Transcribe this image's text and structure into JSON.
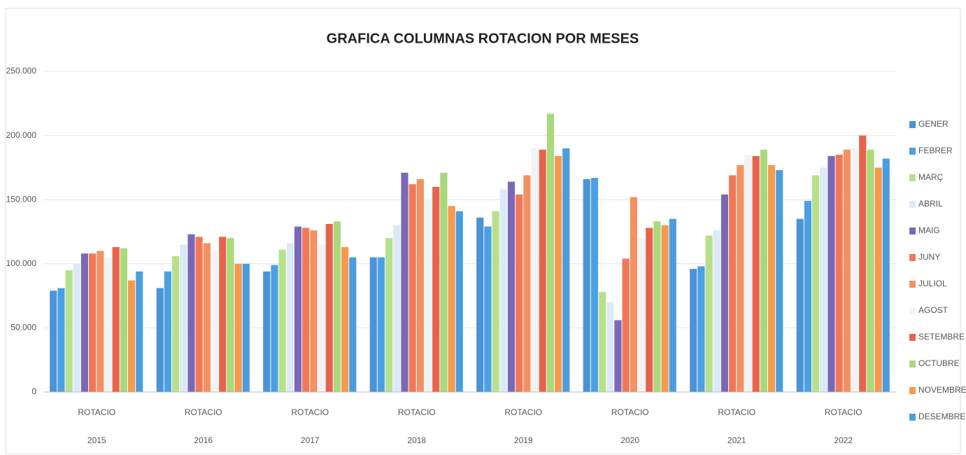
{
  "chart_data": {
    "type": "bar",
    "title": "GRAFICA COLUMNAS ROTACION POR MESES",
    "categories": [
      [
        "ROTACIO",
        "2015"
      ],
      [
        "ROTACIO",
        "2016"
      ],
      [
        "ROTACIO",
        "2017"
      ],
      [
        "ROTACIO",
        "2018"
      ],
      [
        "ROTACIO",
        "2019"
      ],
      [
        "ROTACIO",
        "2020"
      ],
      [
        "ROTACIO",
        "2021"
      ],
      [
        "ROTACIO",
        "2022"
      ]
    ],
    "series": [
      {
        "name": "GENER",
        "color": "#4b93d8",
        "values": [
          79000,
          81000,
          94000,
          105000,
          136000,
          166000,
          96000,
          135000
        ]
      },
      {
        "name": "FEBRER",
        "color": "#4aa0e2",
        "values": [
          81000,
          94000,
          99000,
          105000,
          129000,
          167000,
          98000,
          149000
        ]
      },
      {
        "name": "MARÇ",
        "color": "#b8e08c",
        "values": [
          95000,
          106000,
          111000,
          120000,
          141000,
          78000,
          122000,
          169000
        ]
      },
      {
        "name": "ABRIL",
        "color": "#dce9f6",
        "values": [
          100000,
          115000,
          116000,
          130000,
          158000,
          70000,
          126000,
          175000
        ]
      },
      {
        "name": "MAIG",
        "color": "#7a68b6",
        "values": [
          108000,
          123000,
          129000,
          171000,
          164000,
          56000,
          154000,
          184000
        ]
      },
      {
        "name": "JUNY",
        "color": "#f07858",
        "values": [
          108000,
          121000,
          128000,
          162000,
          154000,
          104000,
          169000,
          185000
        ]
      },
      {
        "name": "JULIOL",
        "color": "#f39162",
        "values": [
          110000,
          116000,
          126000,
          166000,
          169000,
          152000,
          177000,
          189000
        ]
      },
      {
        "name": "AGOST",
        "color": "#f3f3f3",
        "values": [
          105000,
          110000,
          115000,
          150000,
          190000,
          120000,
          185000,
          190000
        ]
      },
      {
        "name": "SETEMBRE",
        "color": "#e8634c",
        "values": [
          113000,
          121000,
          131000,
          160000,
          189000,
          128000,
          184000,
          200000
        ]
      },
      {
        "name": "OCTUBRE",
        "color": "#a9d97a",
        "values": [
          112000,
          120000,
          133000,
          171000,
          217000,
          133000,
          189000,
          189000
        ]
      },
      {
        "name": "NOVEMBRE",
        "color": "#f59a50",
        "values": [
          87000,
          100000,
          113000,
          145000,
          184000,
          130000,
          177000,
          175000
        ]
      },
      {
        "name": "DESEMBRE",
        "color": "#4a9ee0",
        "values": [
          94000,
          100000,
          105000,
          141000,
          190000,
          135000,
          173000,
          182000
        ]
      }
    ],
    "ylim": [
      0,
      250000
    ],
    "yticks": [
      0,
      {
        "value": 50000,
        "label": "50.000"
      },
      {
        "value": 100000,
        "label": "100.000"
      },
      {
        "value": 150000,
        "label": "150.000"
      },
      {
        "value": 200000,
        "label": "200.000"
      },
      {
        "value": 250000,
        "label": "250.000"
      }
    ],
    "grid": true,
    "legend": "right"
  }
}
